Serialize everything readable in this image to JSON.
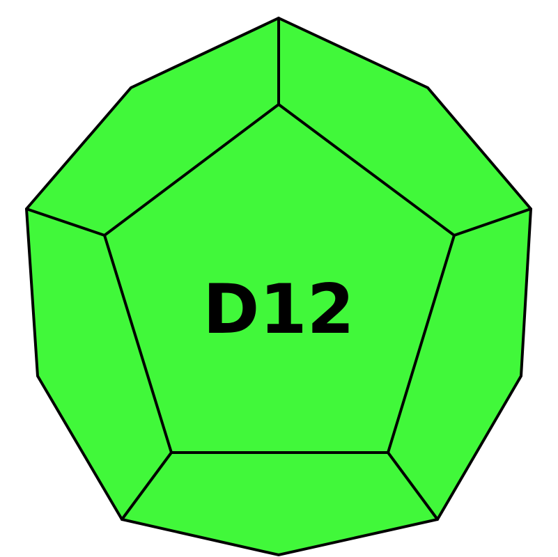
{
  "die": {
    "label": "D12",
    "fill_color": "#41f83a",
    "stroke_color": "#000000"
  }
}
